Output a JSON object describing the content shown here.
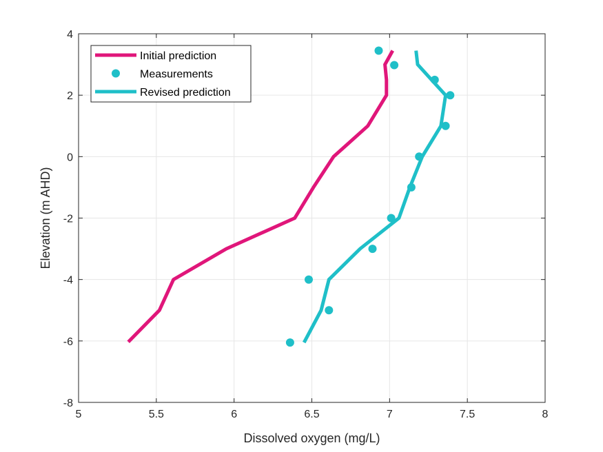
{
  "chart_data": {
    "type": "line",
    "xlabel": "Dissolved oxygen (mg/L)",
    "ylabel": "Elevation (m AHD)",
    "xlim": [
      5,
      8
    ],
    "ylim": [
      -8,
      4
    ],
    "xticks": [
      5,
      5.5,
      6,
      6.5,
      7,
      7.5,
      8
    ],
    "yticks": [
      -8,
      -6,
      -4,
      -2,
      0,
      2,
      4
    ],
    "xtick_labels": [
      "5",
      "5.5",
      "6",
      "6.5",
      "7",
      "7.5",
      "8"
    ],
    "ytick_labels": [
      "-8",
      "-6",
      "-4",
      "-2",
      "0",
      "2",
      "4"
    ],
    "grid": true,
    "legend_location": "top-left",
    "series": [
      {
        "name": "Initial prediction",
        "style": "line",
        "color": "#e0167a",
        "x": [
          5.32,
          5.52,
          5.61,
          5.95,
          6.39,
          6.51,
          6.64,
          6.86,
          6.98,
          6.98,
          6.97,
          7.02
        ],
        "y": [
          -6.03,
          -5.0,
          -4.0,
          -3.0,
          -2.0,
          -1.0,
          0.0,
          1.0,
          2.0,
          2.5,
          3.0,
          3.45
        ]
      },
      {
        "name": "Measurements",
        "style": "markers",
        "color": "#1fbfc8",
        "x": [
          6.36,
          6.61,
          6.48,
          6.89,
          7.01,
          7.14,
          7.19,
          7.36,
          7.39,
          7.29,
          7.03,
          6.93
        ],
        "y": [
          -6.05,
          -5.0,
          -4.0,
          -3.0,
          -2.0,
          -1.0,
          0.0,
          1.0,
          2.0,
          2.5,
          2.98,
          3.45
        ]
      },
      {
        "name": "Revised prediction",
        "style": "line",
        "color": "#1fbfc8",
        "x": [
          6.45,
          6.56,
          6.61,
          6.81,
          7.06,
          7.13,
          7.21,
          7.33,
          7.36,
          7.27,
          7.18,
          7.17
        ],
        "y": [
          -6.05,
          -5.0,
          -4.0,
          -3.0,
          -2.0,
          -1.0,
          0.0,
          1.0,
          2.0,
          2.5,
          3.0,
          3.45
        ]
      }
    ]
  }
}
